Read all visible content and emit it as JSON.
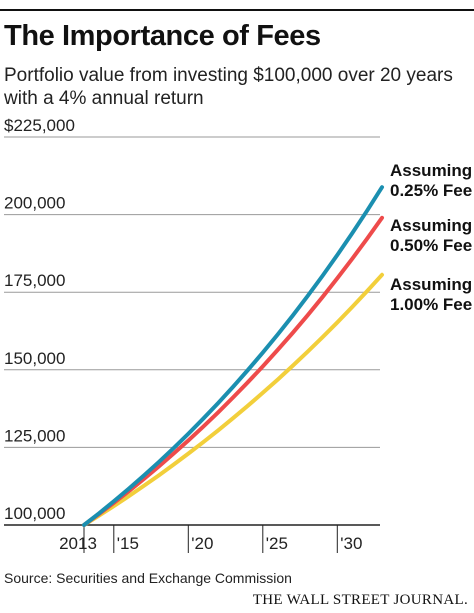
{
  "header": {
    "title": "The Importance of Fees",
    "subtitle": "Portfolio value from investing $100,000 over 20 years with a 4% annual return"
  },
  "footer": {
    "source": "Source: Securities and Exchange Commission",
    "masthead": "THE WALL STREET JOURNAL."
  },
  "chart_data": {
    "type": "line",
    "title": "The Importance of Fees",
    "subtitle": "Portfolio value from investing $100,000 over 20 years with a 4% annual return",
    "xlabel": "",
    "ylabel": "",
    "xlim": [
      2013,
      2033
    ],
    "ylim": [
      100000,
      225000
    ],
    "x_ticks": [
      2013,
      2015,
      2020,
      2025,
      2030
    ],
    "x_tick_labels": [
      "2013",
      "'15",
      "'20",
      "'25",
      "'30"
    ],
    "y_ticks": [
      100000,
      125000,
      150000,
      175000,
      200000,
      225000
    ],
    "y_tick_labels": [
      "100,000",
      "125,000",
      "150,000",
      "175,000",
      "200,000",
      "$225,000"
    ],
    "grid": "horizontal",
    "x": [
      2013,
      2014,
      2015,
      2016,
      2017,
      2018,
      2019,
      2020,
      2021,
      2022,
      2023,
      2024,
      2025,
      2026,
      2027,
      2028,
      2029,
      2030,
      2031,
      2032,
      2033
    ],
    "series": [
      {
        "name": "Assuming 0.25% Fee",
        "label_lines": [
          "Assuming",
          "0.25% Fee"
        ],
        "color": "#1b8fb0",
        "values": [
          100000,
          103750,
          107641,
          111677,
          115865,
          120210,
          124718,
          129395,
          134247,
          139282,
          144505,
          149924,
          155546,
          161379,
          167430,
          173709,
          180223,
          186981,
          193993,
          201268,
          208815
        ]
      },
      {
        "name": "Assuming 0.50% Fee",
        "label_lines": [
          "Assuming",
          "0.50% Fee"
        ],
        "color": "#ee4b4b",
        "values": [
          100000,
          103500,
          107123,
          110872,
          114752,
          118769,
          122926,
          127228,
          131681,
          136290,
          141060,
          145997,
          151107,
          156396,
          161869,
          167535,
          173399,
          179468,
          185749,
          192250,
          198979
        ]
      },
      {
        "name": "Assuming 1.00% Fee",
        "label_lines": [
          "Assuming",
          "1.00% Fee"
        ],
        "color": "#f2cf3b",
        "values": [
          100000,
          103000,
          106090,
          109273,
          112551,
          115927,
          119405,
          122987,
          126677,
          130477,
          134392,
          138423,
          142576,
          146853,
          151259,
          155797,
          160471,
          165285,
          170243,
          175351,
          180611
        ]
      }
    ]
  }
}
